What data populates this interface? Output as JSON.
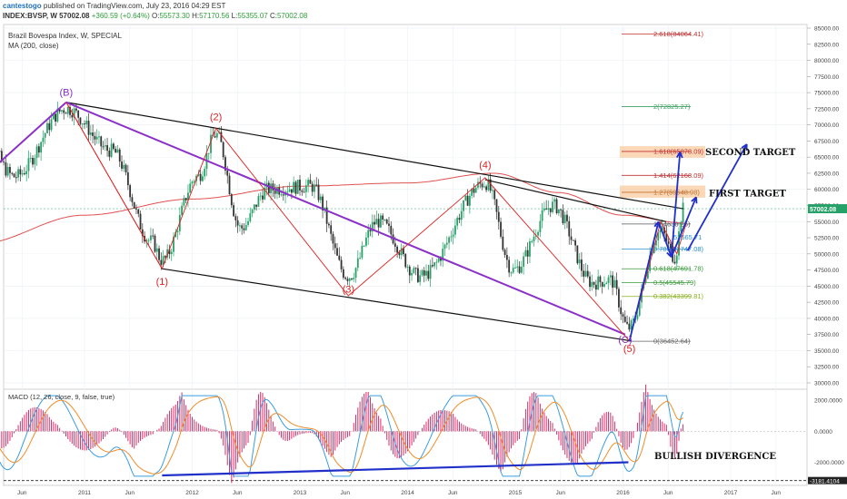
{
  "header": {
    "username": "cantestogo",
    "published_text": "published on TradingView.com, July 23, 2016 04:29 EST",
    "symbol": "INDEX:BVSP, W",
    "last": "57002.08",
    "change": "+360.59 (+0.64%)",
    "ohlc": {
      "open_label": "O:",
      "open": "55573.30",
      "high_label": "H:",
      "high": "57170.56",
      "low_label": "L:",
      "low": "55355.07",
      "close_label": "C:",
      "close": "57002.08"
    }
  },
  "chart_data": [
    {
      "type": "candlestick",
      "title": "Brazil Bovespa Index, W, SPECIAL",
      "indicator": "MA (200, close)",
      "price_label": "57002.08",
      "ylim": [
        30000,
        85000
      ],
      "y_ticks": [
        "85000.00",
        "82500.00",
        "80000.00",
        "77500.00",
        "75000.00",
        "72500.00",
        "70000.00",
        "67500.00",
        "65000.00",
        "62500.00",
        "60000.00",
        "57500.00",
        "55000.00",
        "52500.00",
        "50000.00",
        "47500.00",
        "45000.00",
        "42500.00",
        "40000.00",
        "37500.00",
        "35000.00",
        "32500.00",
        "30000.00"
      ],
      "x_ticks": [
        "Jun",
        "2011",
        "Jun",
        "2012",
        "Jun",
        "2013",
        "Jun",
        "2014",
        "Jun",
        "2015",
        "Jun",
        "2016",
        "Jun",
        "2017",
        "Jun"
      ],
      "price_keypoints": [
        {
          "date": "2010.00",
          "close": 70500
        },
        {
          "date": "2010.35",
          "close": 62000
        },
        {
          "date": "2010.83",
          "close": 72500
        },
        {
          "date": "2011.25",
          "close": 66000
        },
        {
          "date": "2011.62",
          "close": 52000
        },
        {
          "date": "2011.72",
          "close": 49000
        },
        {
          "date": "2012.05",
          "close": 62000
        },
        {
          "date": "2012.22",
          "close": 68500
        },
        {
          "date": "2012.45",
          "close": 54000
        },
        {
          "date": "2012.70",
          "close": 60000
        },
        {
          "date": "2013.10",
          "close": 60500
        },
        {
          "date": "2013.45",
          "close": 46500
        },
        {
          "date": "2013.72",
          "close": 55000
        },
        {
          "date": "2014.12",
          "close": 46500
        },
        {
          "date": "2014.72",
          "close": 61000
        },
        {
          "date": "2014.98",
          "close": 47500
        },
        {
          "date": "2015.35",
          "close": 57500
        },
        {
          "date": "2015.72",
          "close": 45500
        },
        {
          "date": "2015.88",
          "close": 46000
        },
        {
          "date": "2016.05",
          "close": 38500
        },
        {
          "date": "2016.35",
          "close": 53500
        },
        {
          "date": "2016.48",
          "close": 49500
        },
        {
          "date": "2016.56",
          "close": 57002
        }
      ],
      "ma200_keypoints": [
        {
          "date": "2010.00",
          "close": 51500
        },
        {
          "date": "2011.00",
          "close": 56000
        },
        {
          "date": "2012.00",
          "close": 58500
        },
        {
          "date": "2013.00",
          "close": 60500
        },
        {
          "date": "2014.00",
          "close": 61000
        },
        {
          "date": "2014.80",
          "close": 62500
        },
        {
          "date": "2015.40",
          "close": 59500
        },
        {
          "date": "2016.00",
          "close": 56000
        },
        {
          "date": "2016.56",
          "close": 54800
        }
      ],
      "wave_labels": [
        {
          "text": "(B)",
          "date": "2010.83",
          "price": 74500
        },
        {
          "text": "(1)",
          "date": "2011.72",
          "price": 45200
        },
        {
          "text": "(2)",
          "date": "2012.22",
          "price": 70700
        },
        {
          "text": "(3)",
          "date": "2013.45",
          "price": 44000
        },
        {
          "text": "(4)",
          "date": "2014.72",
          "price": 63300
        },
        {
          "text": "(C)",
          "date": "2016.02",
          "price": 36200
        },
        {
          "text": "(5)",
          "date": "2016.06",
          "price": 34800
        }
      ],
      "fib_levels": [
        {
          "ratio": "2.618",
          "price": "84064.41"
        },
        {
          "ratio": "2",
          "price": "72825.27"
        },
        {
          "ratio": "1.618",
          "price": "65878.09"
        },
        {
          "ratio": "1.414",
          "price": "62168.09"
        },
        {
          "ratio": "1.27",
          "price": "59548.98"
        },
        {
          "ratio": "1",
          "price": "54638.25"
        },
        {
          "ratio": "0.786",
          "price": "50747.08"
        },
        {
          "ratio": "0.618",
          "price": "47691.78"
        },
        {
          "ratio": "0.5",
          "price": "45545.79"
        },
        {
          "ratio": "0.382",
          "price": "43399.81"
        },
        {
          "ratio": "0",
          "price": "36452.64"
        }
      ],
      "fib_extra_label": "52565.71",
      "annotations": [
        "SECOND TARGET",
        "FIRST TARGET"
      ]
    },
    {
      "type": "line",
      "title": "MACD (12, 26, close, 9, false, true)",
      "ylim": [
        -3200,
        2600
      ],
      "y_ticks": [
        "2000.0000",
        "0.0000",
        "-2000.0000"
      ],
      "bottom_label": "-3181.4104",
      "annotation": "BULLISH DIVERGENCE",
      "series": [
        {
          "name": "MACD",
          "values": []
        },
        {
          "name": "Signal",
          "values": []
        }
      ]
    }
  ],
  "colors": {
    "up": "#26a269",
    "down": "#333333",
    "ma": "#e05050",
    "wave": "#e02020",
    "channel": "#111111",
    "purple": "#8b2fc9",
    "arrow": "#2030c8",
    "target_box": "#f7b97e",
    "macd": "#3b9de0",
    "signal": "#f08c28",
    "hist": "#d0306a"
  }
}
